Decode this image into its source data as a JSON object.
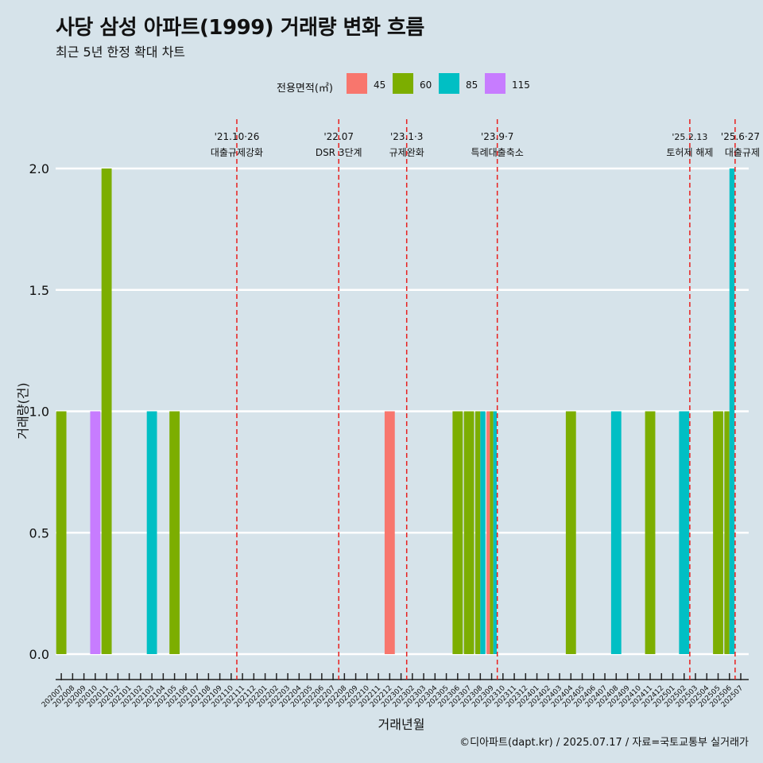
{
  "title": "사당 삼성 아파트(1999) 거래량 변화 흐름",
  "subtitle": "최근 5년 한정 확대 차트",
  "caption": "©디아파트(dapt.kr) / 2025.07.17 / 자료=국토교통부 실거래가",
  "legend": {
    "title": "전용면적(㎡)",
    "items": [
      {
        "label": "45",
        "color": "#f8766d"
      },
      {
        "label": "60",
        "color": "#7cae00"
      },
      {
        "label": "85",
        "color": "#00bfc4"
      },
      {
        "label": "115",
        "color": "#c77cff"
      }
    ]
  },
  "chart_data": {
    "type": "bar",
    "xlabel": "거래년월",
    "ylabel": "거래량(건)",
    "ylim": [
      0,
      2.0
    ],
    "yticks": [
      "0.0",
      "0.5",
      "1.0",
      "1.5",
      "2.0"
    ],
    "categories": [
      "202007",
      "202008",
      "202009",
      "202010",
      "202011",
      "202012",
      "202101",
      "202102",
      "202103",
      "202104",
      "202105",
      "202106",
      "202107",
      "202108",
      "202109",
      "202110",
      "202111",
      "202112",
      "202201",
      "202202",
      "202203",
      "202204",
      "202205",
      "202206",
      "202207",
      "202208",
      "202209",
      "202210",
      "202211",
      "202212",
      "202301",
      "202302",
      "202303",
      "202304",
      "202305",
      "202306",
      "202307",
      "202308",
      "202309",
      "202310",
      "202311",
      "202312",
      "202401",
      "202402",
      "202403",
      "202404",
      "202405",
      "202406",
      "202407",
      "202408",
      "202409",
      "202410",
      "202411",
      "202412",
      "202501",
      "202502",
      "202503",
      "202504",
      "202505",
      "202506",
      "202507"
    ],
    "series": [
      {
        "name": "45",
        "values": [
          {
            "x": "202212",
            "y": 1
          },
          {
            "x": "202309",
            "y": 1
          }
        ]
      },
      {
        "name": "60",
        "values": [
          {
            "x": "202007",
            "y": 1
          },
          {
            "x": "202011",
            "y": 2
          },
          {
            "x": "202105",
            "y": 1
          },
          {
            "x": "202306",
            "y": 1
          },
          {
            "x": "202307",
            "y": 1
          },
          {
            "x": "202308",
            "y": 1
          },
          {
            "x": "202309",
            "y": 1
          },
          {
            "x": "202404",
            "y": 1
          },
          {
            "x": "202411",
            "y": 1
          },
          {
            "x": "202505",
            "y": 1
          },
          {
            "x": "202506",
            "y": 1
          }
        ]
      },
      {
        "name": "85",
        "values": [
          {
            "x": "202103",
            "y": 1
          },
          {
            "x": "202308",
            "y": 1
          },
          {
            "x": "202309",
            "y": 1
          },
          {
            "x": "202408",
            "y": 1
          },
          {
            "x": "202502",
            "y": 1
          },
          {
            "x": "202506",
            "y": 2
          }
        ]
      },
      {
        "name": "115",
        "values": [
          {
            "x": "202010",
            "y": 1
          }
        ]
      }
    ],
    "events": [
      {
        "date": "'21.10·26",
        "label": "대출규제강화",
        "at": "202110"
      },
      {
        "date": "'22.07",
        "label": "DSR 3단계",
        "at": "202207"
      },
      {
        "date": "'23.1·3",
        "label": "규제완화",
        "at": "202301"
      },
      {
        "date": "'23.9·7",
        "label": "특례대출축소",
        "at": "202309"
      },
      {
        "date": "'25.2.13",
        "label": "토허제 해제",
        "at": "202502"
      },
      {
        "date": "'25.6·27",
        "label": "대출규제",
        "at": "202506"
      }
    ]
  }
}
